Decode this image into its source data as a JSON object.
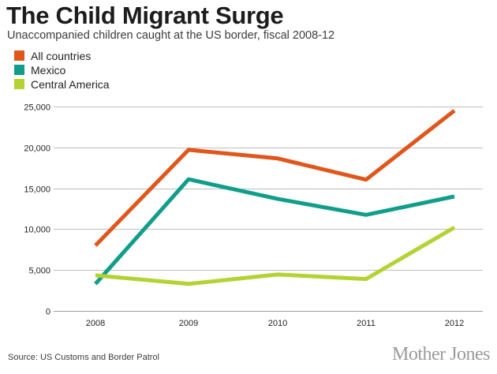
{
  "title": "The Child Migrant Surge",
  "subtitle": "Unaccompanied children caught at the US border, fiscal 2008-12",
  "source": "Source: US Customs and Border Patrol",
  "brand": "Mother Jones",
  "legend": [
    {
      "label": "All countries",
      "color": "#e0561b"
    },
    {
      "label": "Mexico",
      "color": "#109e8a"
    },
    {
      "label": "Central America",
      "color": "#b3d333"
    }
  ],
  "chart_data": {
    "type": "line",
    "x": [
      "2008",
      "2009",
      "2010",
      "2011",
      "2012"
    ],
    "series": [
      {
        "name": "All countries",
        "color": "#e0561b",
        "values": [
          8000,
          19700,
          18650,
          16050,
          24500
        ]
      },
      {
        "name": "Mexico",
        "color": "#109e8a",
        "values": [
          3300,
          16100,
          13700,
          11750,
          14000
        ]
      },
      {
        "name": "Central America",
        "color": "#b3d333",
        "values": [
          4350,
          3300,
          4450,
          3900,
          10200
        ]
      }
    ],
    "ylim": [
      0,
      25000
    ],
    "yticks": [
      0,
      5000,
      10000,
      15000,
      20000,
      25000
    ],
    "ytick_labels": [
      "0",
      "5,000",
      "10,000",
      "15,000",
      "20,000",
      "25,000"
    ],
    "grid": true,
    "gridline_color": "#bdbdbd",
    "legend_position": "top-left"
  }
}
